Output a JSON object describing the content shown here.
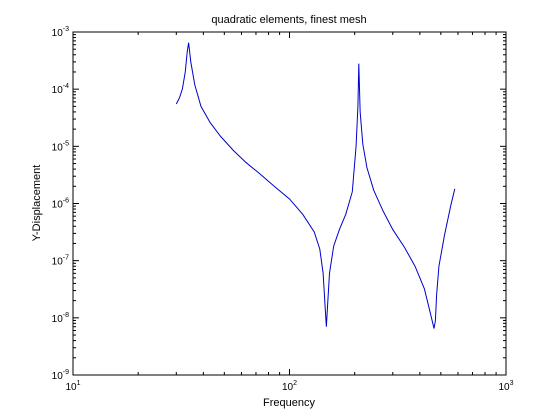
{
  "chart_data": {
    "type": "line",
    "title": "quadratic elements, finest mesh",
    "xlabel": "Frequency",
    "ylabel": "Y-Displacement",
    "xscale": "log",
    "yscale": "log",
    "xlim": [
      10,
      1000
    ],
    "ylim": [
      1e-09,
      0.001
    ],
    "grid": false,
    "legend": "none",
    "x_ticks": [
      {
        "base": "10",
        "exp": "1",
        "value": 10
      },
      {
        "base": "10",
        "exp": "2",
        "value": 100
      },
      {
        "base": "10",
        "exp": "3",
        "value": 1000
      }
    ],
    "y_ticks": [
      {
        "base": "10",
        "exp": "-9",
        "value": 1e-09
      },
      {
        "base": "10",
        "exp": "-8",
        "value": 1e-08
      },
      {
        "base": "10",
        "exp": "-7",
        "value": 1e-07
      },
      {
        "base": "10",
        "exp": "-6",
        "value": 1e-06
      },
      {
        "base": "10",
        "exp": "-5",
        "value": 1e-05
      },
      {
        "base": "10",
        "exp": "-4",
        "value": 0.0001
      },
      {
        "base": "10",
        "exp": "-3",
        "value": 0.001
      }
    ],
    "series": [
      {
        "color": "#0000cc",
        "x": [
          30,
          31,
          32,
          33,
          33.7,
          34.2,
          35,
          36.5,
          39,
          43,
          48,
          55,
          63,
          73,
          85,
          100,
          115,
          130,
          138,
          143,
          146,
          148,
          150,
          153,
          160,
          170,
          182,
          195,
          203,
          207,
          209,
          212,
          218,
          228,
          245,
          270,
          300,
          340,
          380,
          420,
          450,
          465,
          472,
          478,
          490,
          520,
          555,
          580
        ],
        "y": [
          5.5e-05,
          7e-05,
          0.0001,
          0.0002,
          0.00045,
          0.00065,
          0.0003,
          0.00012,
          5e-05,
          2.6e-05,
          1.5e-05,
          8.5e-06,
          5.2e-06,
          3.3e-06,
          2e-06,
          1.2e-06,
          6.5e-07,
          3.2e-07,
          1.6e-07,
          6e-08,
          1.6e-08,
          7e-09,
          1.7e-08,
          6e-08,
          1.8e-07,
          3.5e-07,
          6.5e-07,
          1.6e-06,
          1e-05,
          5e-05,
          0.00028,
          4e-05,
          1.1e-05,
          4.2e-06,
          1.7e-06,
          7.5e-07,
          3.5e-07,
          1.7e-07,
          8e-08,
          3.2e-08,
          1.1e-08,
          6.5e-09,
          9e-09,
          2.5e-08,
          8e-08,
          2.8e-07,
          9e-07,
          1.8e-06
        ]
      }
    ]
  }
}
